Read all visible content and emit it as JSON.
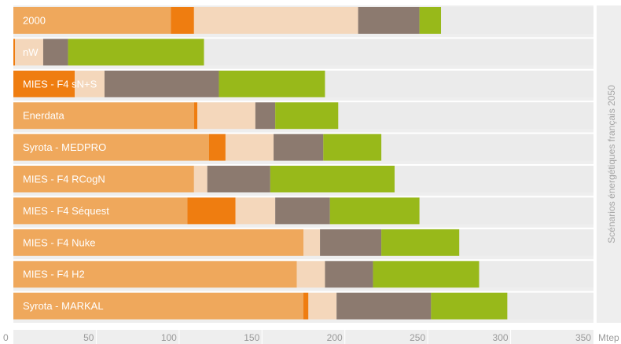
{
  "chart_data": {
    "type": "bar",
    "orientation": "horizontal",
    "stacked": true,
    "xlabel": "Mtep",
    "ylabel": "Scénarios énergétiques français 2050",
    "xlim": [
      0,
      350
    ],
    "xticks": [
      0,
      50,
      100,
      150,
      200,
      250,
      300,
      350
    ],
    "categories": [
      "2000",
      "nW",
      "MIES - F4 sN+S",
      "Enerdata",
      "Syrota - MEDPRO",
      "MIES - F4 RCogN",
      "MIES - F4 Séquest",
      "MIES - F4 Nuke",
      "MIES - F4 H2",
      "Syrota - MARKAL"
    ],
    "series": [
      {
        "color": "#efa85c",
        "values": [
          95,
          0,
          0,
          109,
          118,
          109,
          105,
          175,
          171,
          175
        ]
      },
      {
        "color": "#ef7d10",
        "values": [
          14,
          1,
          37,
          2,
          10,
          0,
          29,
          0,
          0,
          3
        ]
      },
      {
        "color": "#f4d7bb",
        "values": [
          99,
          17,
          18,
          35,
          29,
          8,
          24,
          10,
          17,
          17
        ]
      },
      {
        "color": "#8c7a6f",
        "values": [
          37,
          15,
          69,
          12,
          30,
          38,
          33,
          37,
          29,
          57
        ]
      },
      {
        "color": "#98b91a",
        "values": [
          13,
          82,
          64,
          38,
          35,
          75,
          54,
          47,
          64,
          46
        ]
      }
    ],
    "grid": false,
    "legend": "none"
  }
}
